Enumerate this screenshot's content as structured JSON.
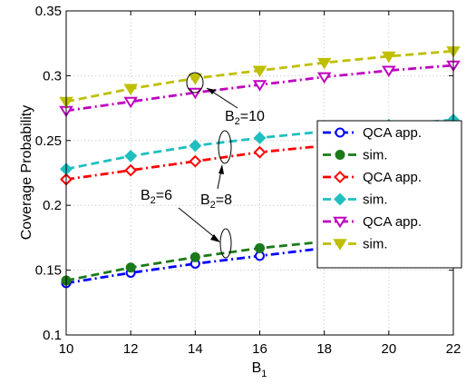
{
  "chart_data": {
    "type": "line",
    "xlabel": "B",
    "xlabel_sub": "1",
    "ylabel": "Coverage Probability",
    "xlim": [
      10,
      22
    ],
    "ylim": [
      0.1,
      0.35
    ],
    "xticks": [
      10,
      12,
      14,
      16,
      18,
      20,
      22
    ],
    "yticks": [
      0.1,
      0.15,
      0.2,
      0.25,
      0.3,
      0.35
    ],
    "ytick_labels": [
      "0.1",
      "0.15",
      "0.2",
      "0.25",
      "0.3",
      "0.35"
    ],
    "grid": true,
    "legend_position": "right",
    "x": [
      10,
      12,
      14,
      16,
      18,
      20,
      22
    ],
    "series": [
      {
        "name": "QCA app.",
        "color": "#0000ff",
        "marker": "circle",
        "dash": "dashdot",
        "values": [
          0.14,
          0.148,
          0.155,
          0.161,
          0.167,
          0.172,
          0.176
        ]
      },
      {
        "name": "sim.",
        "color": "#1a7a1a",
        "marker": "circle-filled",
        "dash": "dash",
        "values": [
          0.142,
          0.152,
          0.16,
          0.167,
          0.172,
          0.177,
          0.181
        ]
      },
      {
        "name": "QCA app.",
        "color": "#ff0000",
        "marker": "diamond",
        "dash": "dashdot",
        "values": [
          0.22,
          0.227,
          0.234,
          0.241,
          0.246,
          0.251,
          0.255
        ]
      },
      {
        "name": "sim.",
        "color": "#1fbfbf",
        "marker": "diamond-filled",
        "dash": "dash",
        "values": [
          0.228,
          0.238,
          0.246,
          0.252,
          0.257,
          0.262,
          0.266
        ]
      },
      {
        "name": "QCA app.",
        "color": "#bf00bf",
        "marker": "triangle-down",
        "dash": "dashdot",
        "values": [
          0.273,
          0.28,
          0.287,
          0.293,
          0.299,
          0.304,
          0.308
        ]
      },
      {
        "name": "sim.",
        "color": "#bfbf00",
        "marker": "triangle-down-filled",
        "dash": "dash",
        "values": [
          0.28,
          0.29,
          0.298,
          0.304,
          0.31,
          0.315,
          0.319
        ]
      }
    ],
    "annotations": [
      {
        "base": "B",
        "sub": "2",
        "rest": "=10"
      },
      {
        "base": "B",
        "sub": "2",
        "rest": "=8"
      },
      {
        "base": "B",
        "sub": "2",
        "rest": "=6"
      }
    ]
  }
}
